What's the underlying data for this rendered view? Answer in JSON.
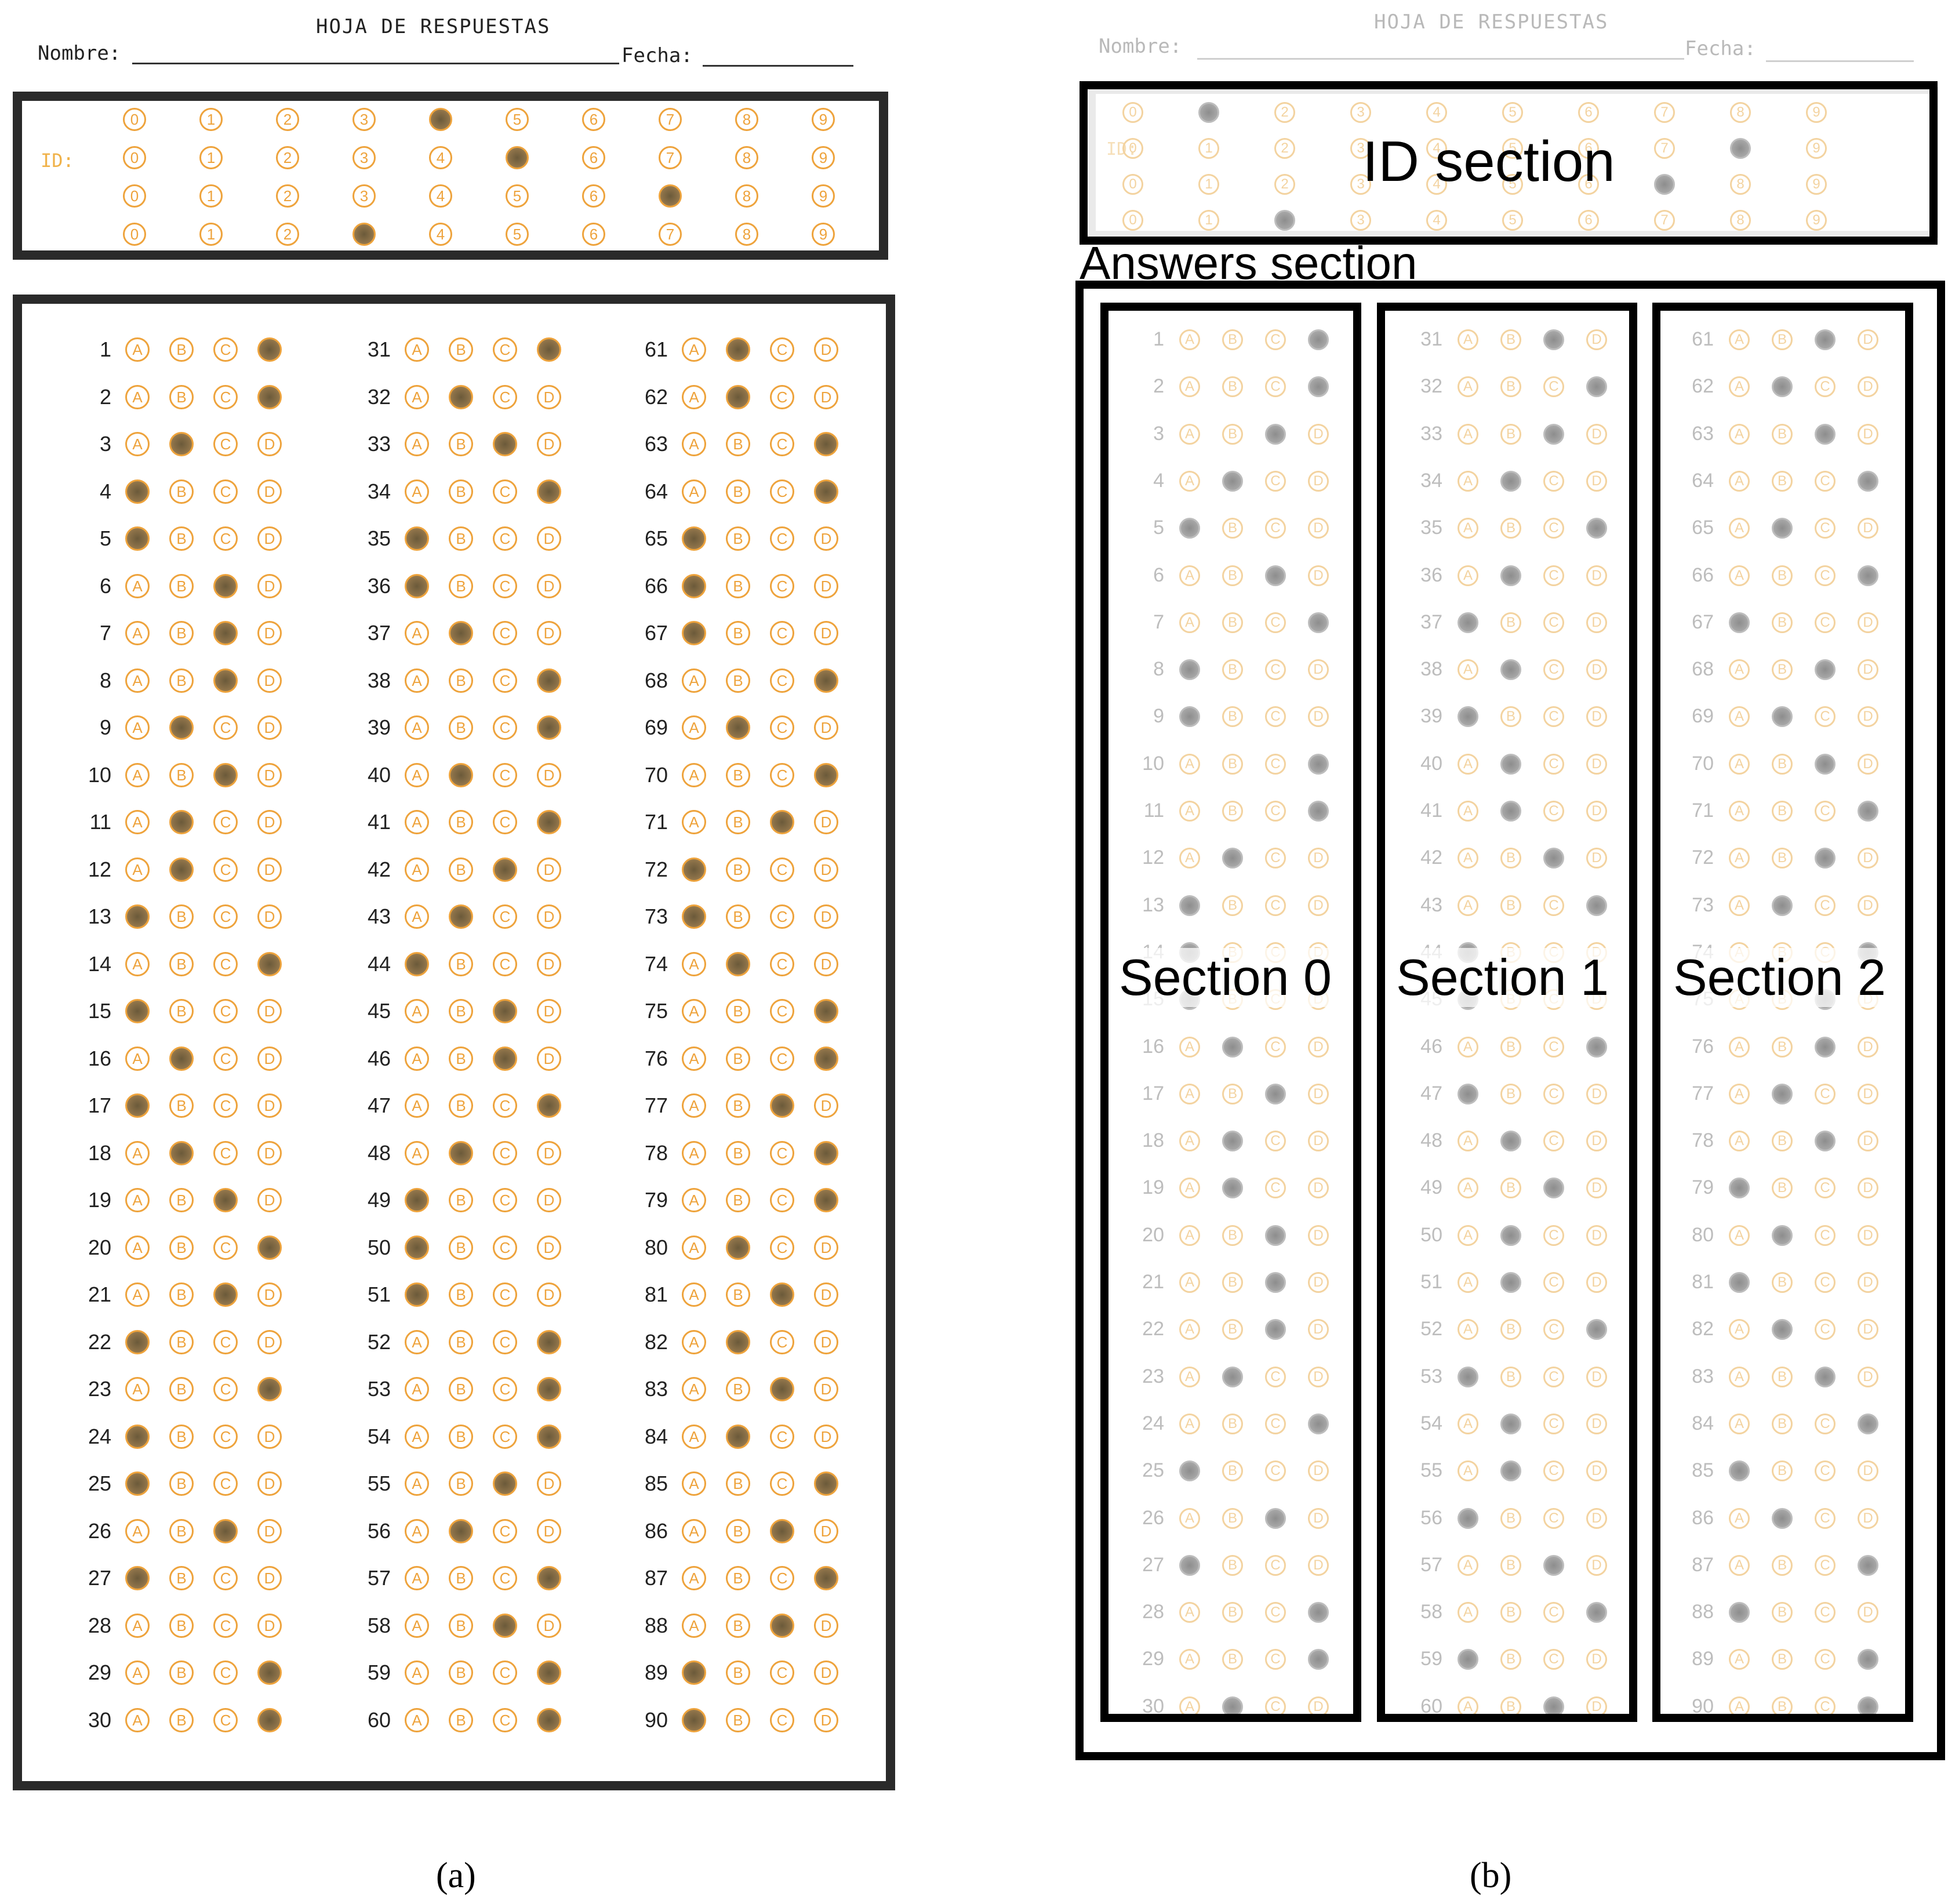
{
  "sheet": {
    "title": "HOJA DE RESPUESTAS",
    "name_label": "Nombre:",
    "date_label": "Fecha:",
    "id_label": "ID:",
    "digits": [
      "0",
      "1",
      "2",
      "3",
      "4",
      "5",
      "6",
      "7",
      "8",
      "9"
    ],
    "choices": [
      "A",
      "B",
      "C",
      "D"
    ]
  },
  "panel_a": {
    "caption": "(a)",
    "id_filled": [
      4,
      5,
      7,
      3
    ],
    "answers": [
      3,
      3,
      1,
      0,
      0,
      2,
      2,
      2,
      1,
      2,
      1,
      1,
      0,
      3,
      0,
      1,
      0,
      1,
      2,
      3,
      2,
      0,
      3,
      0,
      0,
      2,
      0,
      -1,
      3,
      3,
      3,
      1,
      2,
      3,
      0,
      0,
      1,
      3,
      3,
      1,
      3,
      2,
      1,
      0,
      2,
      2,
      3,
      1,
      0,
      0,
      0,
      3,
      3,
      3,
      2,
      1,
      3,
      2,
      3,
      3,
      1,
      1,
      3,
      3,
      0,
      0,
      0,
      3,
      1,
      3,
      2,
      0,
      0,
      1,
      3,
      3,
      2,
      3,
      3,
      1,
      2,
      1,
      2,
      1,
      3,
      2,
      3,
      2,
      0,
      0
    ]
  },
  "panel_b": {
    "caption": "(b)",
    "id_filled": [
      1,
      8,
      7,
      2
    ],
    "answers": [
      3,
      3,
      2,
      1,
      0,
      2,
      3,
      0,
      0,
      3,
      3,
      1,
      0,
      0,
      0,
      1,
      2,
      1,
      1,
      2,
      2,
      2,
      1,
      3,
      0,
      2,
      0,
      3,
      3,
      1,
      2,
      3,
      2,
      1,
      3,
      1,
      0,
      1,
      0,
      1,
      1,
      2,
      3,
      0,
      0,
      3,
      0,
      1,
      2,
      1,
      1,
      3,
      0,
      1,
      1,
      0,
      2,
      3,
      0,
      2,
      2,
      1,
      2,
      3,
      1,
      3,
      0,
      2,
      1,
      2,
      3,
      2,
      1,
      3,
      2,
      2,
      1,
      2,
      0,
      1,
      0,
      1,
      2,
      3,
      0,
      1,
      3,
      0,
      3,
      3
    ],
    "labels": {
      "id_section": "ID section",
      "answers_section": "Answers section",
      "section0": "Section 0",
      "section1": "Section 1",
      "section2": "Section 2"
    }
  }
}
